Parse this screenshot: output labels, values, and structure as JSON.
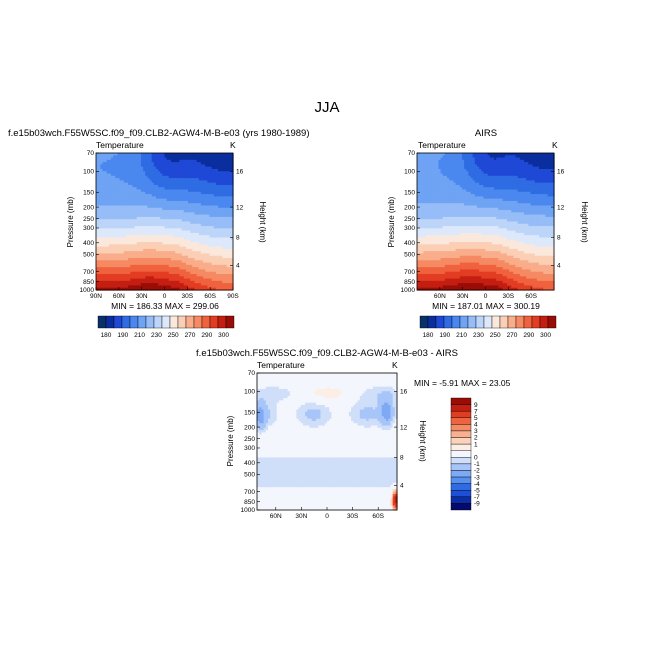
{
  "title": "JJA",
  "colors": {
    "scale": [
      "#08306b",
      "#0b2e9e",
      "#1f48d6",
      "#2f6ce3",
      "#4a88ef",
      "#6fa3f4",
      "#96bdf7",
      "#bdd5f9",
      "#dde8fb",
      "#fbe8dd",
      "#fbcfb5",
      "#f9ad8a",
      "#f58a63",
      "#f0623f",
      "#e23d22",
      "#c41e12",
      "#9a0d07"
    ],
    "diff": [
      "#050a6e",
      "#0b2ea8",
      "#1d4fd9",
      "#2f6ce3",
      "#5690f0",
      "#7eaaf5",
      "#a7c5f8",
      "#cfdef9",
      "#f3f6fc",
      "#fdeee5",
      "#fbd3bb",
      "#f9b090",
      "#f58b65",
      "#ef6440",
      "#e03e22",
      "#c21e12",
      "#9a0d07"
    ]
  },
  "chart_data": [
    {
      "type": "heatmap",
      "name": "panel-model",
      "title": "f.e15b03wch.F55W5SC.f09_f09.CLB2-AGW4-M-B-e03 (yrs 1980-1989)",
      "left_label": "Temperature",
      "right_label": "K",
      "ylabel": "Pressure (mb)",
      "ylabel_right": "Height (km)",
      "yticks": [
        "70",
        "100",
        "150",
        "200",
        "250",
        "300",
        "400",
        "500",
        "700",
        "850",
        "1000"
      ],
      "yticks_right": [
        "16",
        "12",
        "8",
        "4"
      ],
      "xticks": [
        "90N",
        "60N",
        "30N",
        "0",
        "30S",
        "60S",
        "90S"
      ],
      "stats": "MIN = 186.33   MAX = 299.06",
      "xlim": [
        90,
        -90
      ],
      "ylim": [
        1000,
        70
      ],
      "tropo_min": 192,
      "polar_min": 188,
      "surface_max": 299
    },
    {
      "type": "heatmap",
      "name": "panel-airs",
      "title": "AIRS",
      "left_label": "Temperature",
      "right_label": "K",
      "ylabel": "Pressure (mb)",
      "ylabel_right": "Height (km)",
      "yticks": [
        "70",
        "100",
        "150",
        "200",
        "250",
        "300",
        "400",
        "500",
        "700",
        "850",
        "1000"
      ],
      "yticks_right": [
        "16",
        "12",
        "8",
        "4"
      ],
      "xticks": [
        "60N",
        "30N",
        "0",
        "30S",
        "60S"
      ],
      "stats": "MIN = 187.01   MAX = 300.19",
      "xlim": [
        90,
        -90
      ],
      "ylim": [
        1000,
        70
      ],
      "tropo_min": 193,
      "polar_min": 188,
      "surface_max": 300
    },
    {
      "type": "heatmap",
      "name": "panel-diff",
      "title": "f.e15b03wch.F55W5SC.f09_f09.CLB2-AGW4-M-B-e03 - AIRS",
      "left_label": "Temperature",
      "right_label": "K",
      "ylabel": "Pressure (mb)",
      "ylabel_right": "Height (km)",
      "yticks": [
        "70",
        "100",
        "150",
        "200",
        "250",
        "300",
        "400",
        "500",
        "700",
        "850",
        "1000"
      ],
      "yticks_right": [
        "16",
        "12",
        "8",
        "4"
      ],
      "xticks": [
        "60N",
        "30N",
        "0",
        "30S",
        "60S"
      ],
      "stats": "MIN = -5.91   MAX =  23.05",
      "xlim": [
        82,
        -82
      ],
      "ylim": [
        1000,
        70
      ]
    }
  ],
  "colorbar": {
    "labels": [
      "180",
      "190",
      "210",
      "230",
      "250",
      "270",
      "290",
      "300"
    ],
    "range": [
      175,
      305
    ]
  },
  "diff_colorbar": {
    "labels": [
      "9",
      "7",
      "5",
      "4",
      "3",
      "2",
      "1",
      "0",
      "-1",
      "-2",
      "-3",
      "-4",
      "-5",
      "-7",
      "-9"
    ],
    "levels": [
      9,
      7,
      5,
      4,
      3,
      2,
      1,
      0.5,
      -0.5,
      -1,
      -2,
      -3,
      -4,
      -5,
      -7,
      -9
    ]
  }
}
